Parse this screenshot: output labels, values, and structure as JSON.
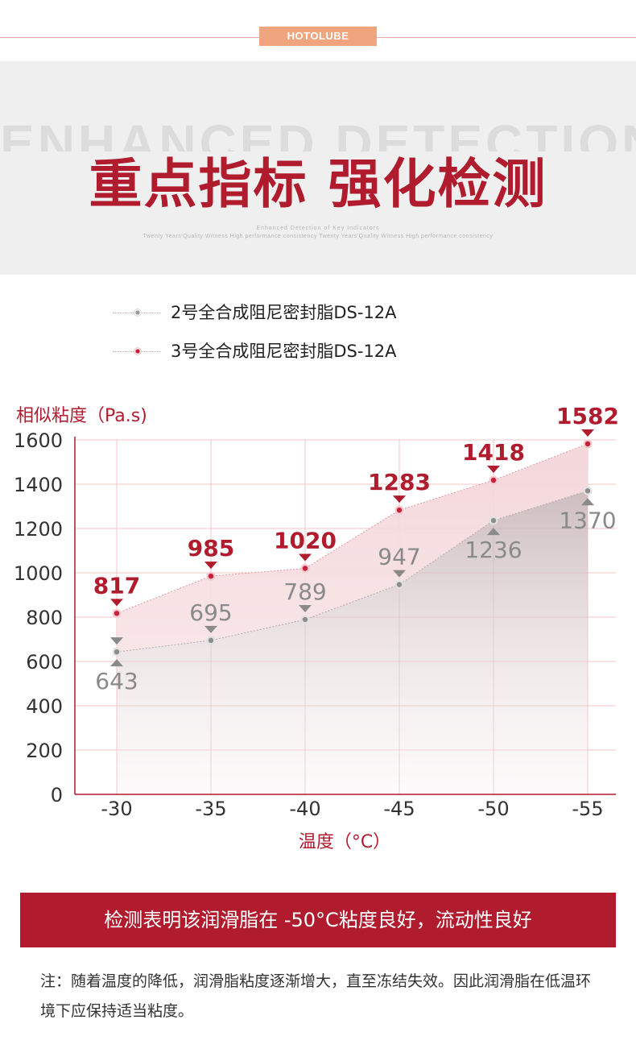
{
  "brand": "HOTOLUBE",
  "hero": {
    "bg_text": "ENHANCED DETECTION",
    "title": "重点指标 强化检测",
    "sub1": "Enhanced Detection of Key Indicators",
    "sub2": "Twenty Years'Quality Witness High performance consistency Twenty Years'Quality Witness High performance consistency"
  },
  "legend": [
    {
      "label": "2号全合成阻尼密封脂DS-12A",
      "color": "#8a8a8a"
    },
    {
      "label": "3号全合成阻尼密封脂DS-12A",
      "color": "#c8203a"
    }
  ],
  "colors": {
    "accent": "#b01c2e",
    "series_gray": "#8a8a8a",
    "series_red": "#c8203a",
    "grid": "#f0c4c8"
  },
  "chart_data": {
    "type": "area",
    "ylabel": "相似粘度（Pa.s)",
    "xlabel": "温度（°C）",
    "ylim": [
      0,
      1600
    ],
    "yticks": [
      0,
      200,
      400,
      600,
      800,
      1000,
      1200,
      1400,
      1600
    ],
    "categories": [
      "-30",
      "-35",
      "-40",
      "-45",
      "-50",
      "-55"
    ],
    "series": [
      {
        "name": "2号全合成阻尼密封脂DS-12A",
        "values": [
          643,
          695,
          789,
          947,
          1236,
          1370
        ]
      },
      {
        "name": "3号全合成阻尼密封脂DS-12A",
        "values": [
          817,
          985,
          1020,
          1283,
          1418,
          1582
        ]
      }
    ],
    "grid": true,
    "legend": "top"
  },
  "banner": "检测表明该润滑脂在 -50°C粘度良好，流动性良好",
  "note": "注：随着温度的降低，润滑脂粘度逐渐增大，直至冻结失效。因此润滑脂在低温环境下应保持适当粘度。"
}
